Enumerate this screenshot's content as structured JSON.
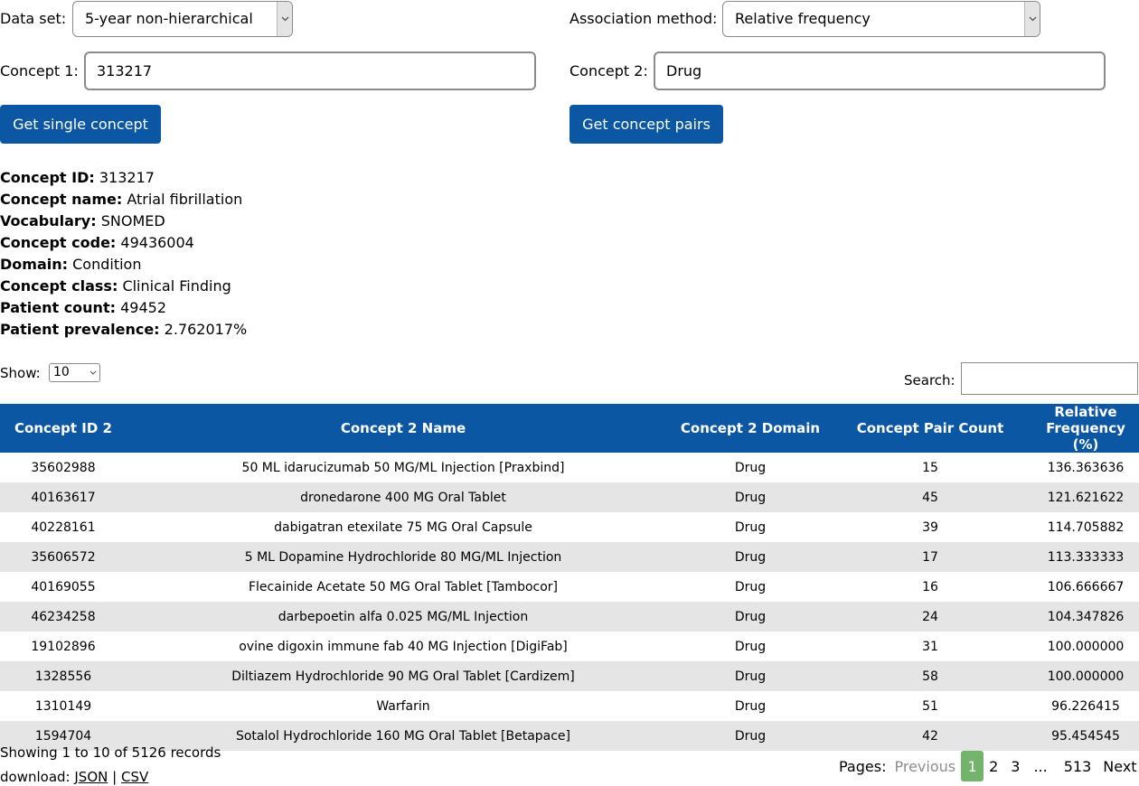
{
  "form": {
    "dataset_label": "Data set:",
    "dataset_value": "5-year non-hierarchical",
    "method_label": "Association method:",
    "method_value": "Relative frequency",
    "concept1_label": "Concept 1:",
    "concept1_value": "313217",
    "concept2_label": "Concept 2:",
    "concept2_value": "Drug",
    "single_button": "Get single concept",
    "pairs_button": "Get concept pairs"
  },
  "concept_info": [
    {
      "label": "Concept ID:",
      "value": "313217"
    },
    {
      "label": "Concept name:",
      "value": "Atrial fibrillation"
    },
    {
      "label": "Vocabulary:",
      "value": "SNOMED"
    },
    {
      "label": "Concept code:",
      "value": "49436004"
    },
    {
      "label": "Domain:",
      "value": "Condition"
    },
    {
      "label": "Concept class:",
      "value": "Clinical Finding"
    },
    {
      "label": "Patient count:",
      "value": "49452"
    },
    {
      "label": "Patient prevalence:",
      "value": "2.762017%"
    }
  ],
  "table_controls": {
    "show_label": "Show:",
    "show_value": "10",
    "search_label": "Search:",
    "search_value": ""
  },
  "table": {
    "columns": [
      "Concept ID 2",
      "Concept 2 Name",
      "Concept 2 Domain",
      "Concept Pair Count",
      "Relative Frequency (%)"
    ],
    "rows": [
      [
        "35602988",
        "50 ML idarucizumab 50 MG/ML Injection [Praxbind]",
        "Drug",
        "15",
        "136.363636"
      ],
      [
        "40163617",
        "dronedarone 400 MG Oral Tablet",
        "Drug",
        "45",
        "121.621622"
      ],
      [
        "40228161",
        "dabigatran etexilate 75 MG Oral Capsule",
        "Drug",
        "39",
        "114.705882"
      ],
      [
        "35606572",
        "5 ML Dopamine Hydrochloride 80 MG/ML Injection",
        "Drug",
        "17",
        "113.333333"
      ],
      [
        "40169055",
        "Flecainide Acetate 50 MG Oral Tablet [Tambocor]",
        "Drug",
        "16",
        "106.666667"
      ],
      [
        "46234258",
        "darbepoetin alfa 0.025 MG/ML Injection",
        "Drug",
        "24",
        "104.347826"
      ],
      [
        "19102896",
        "ovine digoxin immune fab 40 MG Injection [DigiFab]",
        "Drug",
        "31",
        "100.000000"
      ],
      [
        "1328556",
        "Diltiazem Hydrochloride 90 MG Oral Tablet [Cardizem]",
        "Drug",
        "58",
        "100.000000"
      ],
      [
        "1310149",
        "Warfarin",
        "Drug",
        "51",
        "96.226415"
      ],
      [
        "1594704",
        "Sotalol Hydrochloride 160 MG Oral Tablet [Betapace]",
        "Drug",
        "42",
        "95.454545"
      ]
    ]
  },
  "footer": {
    "showing_text": "Showing 1 to 10 of 5126 records",
    "download_label": "download:",
    "json_link": "JSON",
    "separator": "|",
    "csv_link": "CSV"
  },
  "pagination": {
    "label": "Pages:",
    "previous": "Previous",
    "pages": [
      "1",
      "2",
      "3"
    ],
    "ellipsis": "...",
    "last": "513",
    "next": "Next"
  },
  "icons": {
    "dropdown": "chevron-down-icon"
  }
}
